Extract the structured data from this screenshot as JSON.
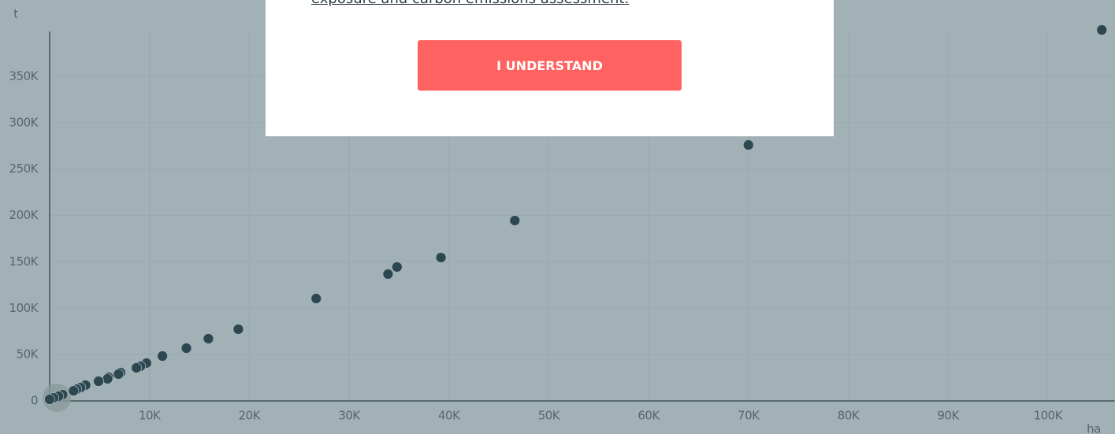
{
  "chart_data": {
    "type": "scatter",
    "ylabel": "t",
    "xlabel": "ha",
    "xlim": [
      0,
      105500
    ],
    "ylim": [
      0,
      400000
    ],
    "xticks": [
      {
        "value": 10000,
        "label": "10K"
      },
      {
        "value": 20000,
        "label": "20K"
      },
      {
        "value": 30000,
        "label": "30K"
      },
      {
        "value": 40000,
        "label": "40K"
      },
      {
        "value": 50000,
        "label": "50K"
      },
      {
        "value": 60000,
        "label": "60K"
      },
      {
        "value": 70000,
        "label": "70K"
      },
      {
        "value": 80000,
        "label": "80K"
      },
      {
        "value": 90000,
        "label": "90K"
      },
      {
        "value": 100000,
        "label": "100K"
      }
    ],
    "yticks": [
      0,
      {
        "value": 50000,
        "label": "50K"
      },
      {
        "value": 100000,
        "label": "100K"
      },
      {
        "value": 150000,
        "label": "150K"
      },
      {
        "value": 200000,
        "label": "200K"
      },
      {
        "value": 250000,
        "label": "250K"
      },
      {
        "value": 300000,
        "label": "300K"
      },
      {
        "value": 350000,
        "label": "350K"
      }
    ],
    "grid": true,
    "color": "#2c4750",
    "x": [
      105400,
      70000,
      46600,
      39200,
      34800,
      33900,
      26700,
      18900,
      15900,
      13700,
      11300,
      9700,
      9100,
      8700,
      7100,
      6900,
      5900,
      5800,
      4900,
      3600,
      3100,
      2700,
      2400,
      1300,
      900,
      400,
      0
    ],
    "y": [
      400000,
      276000,
      194500,
      154600,
      144400,
      136800,
      110400,
      77300,
      67100,
      56900,
      48400,
      40800,
      37400,
      35700,
      30600,
      28900,
      25500,
      23800,
      21200,
      17000,
      14400,
      12700,
      11000,
      6800,
      5100,
      3400,
      1700
    ]
  },
  "modal": {
    "text": "exposure and carbon emissions assessment.",
    "button": "I UNDERSTAND"
  }
}
